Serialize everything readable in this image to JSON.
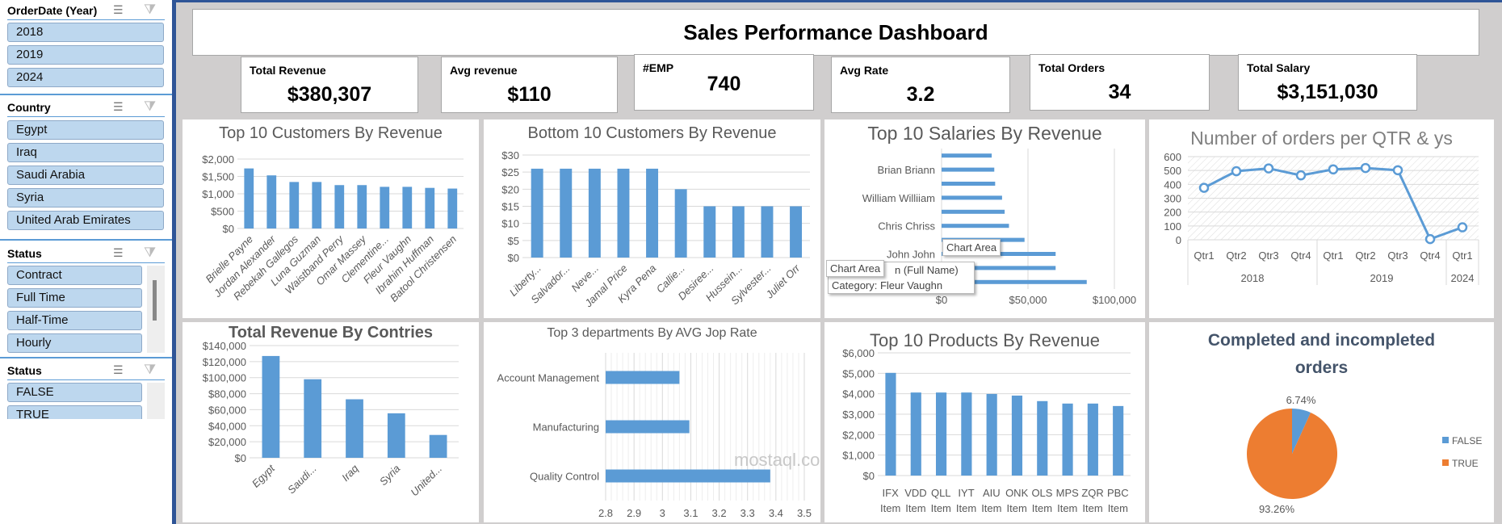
{
  "slicers": [
    {
      "title": "OrderDate (Year)",
      "items": [
        "2018",
        "2019",
        "2024"
      ]
    },
    {
      "title": "Country",
      "items": [
        "Egypt",
        "Iraq",
        "Saudi Arabia",
        "Syria",
        "United Arab Emirates"
      ]
    },
    {
      "title": "Status",
      "items": [
        "Contract",
        "Full Time",
        "Half-Time",
        "Hourly"
      ]
    },
    {
      "title": "Status",
      "items": [
        "FALSE",
        "TRUE"
      ]
    }
  ],
  "slicer_icons": {
    "multi_select": "multi-select-icon",
    "clear_filter": "clear-filter-icon"
  },
  "dashboard": {
    "title": "Sales Performance Dashboard"
  },
  "kpis": [
    {
      "label": "Total Revenue",
      "value": "$380,307"
    },
    {
      "label": "Avg revenue",
      "value": "$110"
    },
    {
      "label": "#EMP",
      "value": "740"
    },
    {
      "label": "Avg Rate",
      "value": "3.2"
    },
    {
      "label": "Total Orders",
      "value": "34"
    },
    {
      "label": "Total Salary",
      "value": "$3,151,030"
    }
  ],
  "colors": {
    "bar": "#5b9bd5",
    "false": "#5b9bd5",
    "true": "#ed7d31"
  },
  "tooltips": {
    "chart_area_1": "Chart Area",
    "chart_area_2": "Chart Area",
    "series_partial": "n (Full Name)",
    "category": "Category: Fleur Vaughn"
  },
  "watermark": {
    "text": "mostaql.com"
  },
  "chart_data": [
    {
      "id": "top10cust",
      "type": "bar",
      "title": "Top 10 Customers By  Revenue",
      "categories": [
        "Brielle Payne",
        "Jordan Alexander",
        "Rebekah Gallegos",
        "Luna Guzman",
        "Waistband Perry",
        "Omar Massey",
        "Clementine...",
        "Fleur Vaughn",
        "Ibrahim Huffman",
        "Batool Christensen"
      ],
      "values": [
        1730,
        1530,
        1340,
        1340,
        1250,
        1250,
        1200,
        1200,
        1170,
        1150
      ],
      "ylim": [
        0,
        2000
      ],
      "yticks": [
        "$0",
        "$500",
        "$1,000",
        "$1,500",
        "$2,000"
      ],
      "grid": true
    },
    {
      "id": "bottom10cust",
      "type": "bar",
      "title": "Bottom 10 Customers By Revenue",
      "categories": [
        "Liberty...",
        "Salvador...",
        "Neve...",
        "Jamal Price",
        "Kyra Pena",
        "Callie...",
        "Desiree...",
        "Hussein...",
        "Sylvester...",
        "Juliet Orr"
      ],
      "values": [
        26,
        26,
        26,
        26,
        26,
        20,
        15,
        15,
        15,
        15
      ],
      "ylim": [
        0,
        30
      ],
      "yticks": [
        "$0",
        "$5",
        "$10",
        "$15",
        "$20",
        "$25",
        "$30"
      ],
      "grid": true
    },
    {
      "id": "salaries",
      "type": "bar",
      "orientation": "horizontal",
      "title": "Top 10 Salaries By Revenue",
      "categories": [
        "",
        "Brian Briann",
        "",
        "William Williiam",
        "",
        "Chris Chriss",
        "",
        "John John",
        "",
        ""
      ],
      "values": [
        29000,
        30500,
        31000,
        35000,
        36500,
        39000,
        48000,
        66000,
        66000,
        84000
      ],
      "xlim": [
        0,
        100000
      ],
      "xticks": [
        "$0",
        "$50,000",
        "$100,000"
      ],
      "grid": true
    },
    {
      "id": "orders_qtr",
      "type": "line",
      "title": "Number of orders per QTR & ys",
      "categories": [
        "Qtr1",
        "Qtr2",
        "Qtr3",
        "Qtr4",
        "Qtr1",
        "Qtr2",
        "Qtr3",
        "Qtr4",
        "Qtr1"
      ],
      "groups": [
        {
          "label": "2018",
          "span": 4
        },
        {
          "label": "2019",
          "span": 4
        },
        {
          "label": "2024",
          "span": 1
        }
      ],
      "values": [
        375,
        495,
        515,
        465,
        508,
        518,
        502,
        5,
        90
      ],
      "ylim": [
        0,
        600
      ],
      "yticks": [
        "0",
        "100",
        "200",
        "300",
        "400",
        "500",
        "600"
      ],
      "grid": true
    },
    {
      "id": "rev_country",
      "type": "bar",
      "title": "Total Revenue By Contries",
      "categories": [
        "Egypt",
        "Saudi...",
        "Iraq",
        "Syria",
        "United..."
      ],
      "values": [
        127000,
        98000,
        73000,
        55500,
        28500
      ],
      "ylim": [
        0,
        140000
      ],
      "yticks": [
        "$0",
        "$20,000",
        "$40,000",
        "$60,000",
        "$80,000",
        "$100,000",
        "$120,000",
        "$140,000"
      ],
      "grid": true
    },
    {
      "id": "departments",
      "type": "bar",
      "orientation": "horizontal",
      "title": "Top 3 departments By AVG Jop Rate",
      "categories": [
        "Account Management",
        "Manufacturing",
        "Quality Control"
      ],
      "values": [
        3.06,
        3.095,
        3.38
      ],
      "xlim": [
        2.8,
        3.5
      ],
      "xticks": [
        "2.8",
        "2.9",
        "3",
        "3.1",
        "3.2",
        "3.3",
        "3.4",
        "3.5"
      ],
      "grid": true
    },
    {
      "id": "products",
      "type": "bar",
      "title": "Top 10 Products By Revenue",
      "categories": [
        [
          "IFX",
          "Item"
        ],
        [
          "VDD",
          "Item"
        ],
        [
          "QLL",
          "Item"
        ],
        [
          "IYT",
          "Item"
        ],
        [
          "AIU",
          "Item"
        ],
        [
          "ONK",
          "Item"
        ],
        [
          "OLS",
          "Item"
        ],
        [
          "MPS",
          "Item"
        ],
        [
          "ZQR",
          "Item"
        ],
        [
          "PBC",
          "Item"
        ]
      ],
      "values": [
        5020,
        4060,
        4060,
        4060,
        3990,
        3910,
        3640,
        3520,
        3520,
        3400
      ],
      "ylim": [
        0,
        6000
      ],
      "yticks": [
        "$0",
        "$1,000",
        "$2,000",
        "$3,000",
        "$4,000",
        "$5,000",
        "$6,000"
      ],
      "grid": true
    },
    {
      "id": "completed",
      "type": "pie",
      "title": "Completed and incompleted orders",
      "labels": [
        "FALSE",
        "TRUE"
      ],
      "values": [
        6.74,
        93.26
      ],
      "data_labels": [
        "6.74%",
        "93.26%"
      ],
      "legend": "right"
    }
  ]
}
